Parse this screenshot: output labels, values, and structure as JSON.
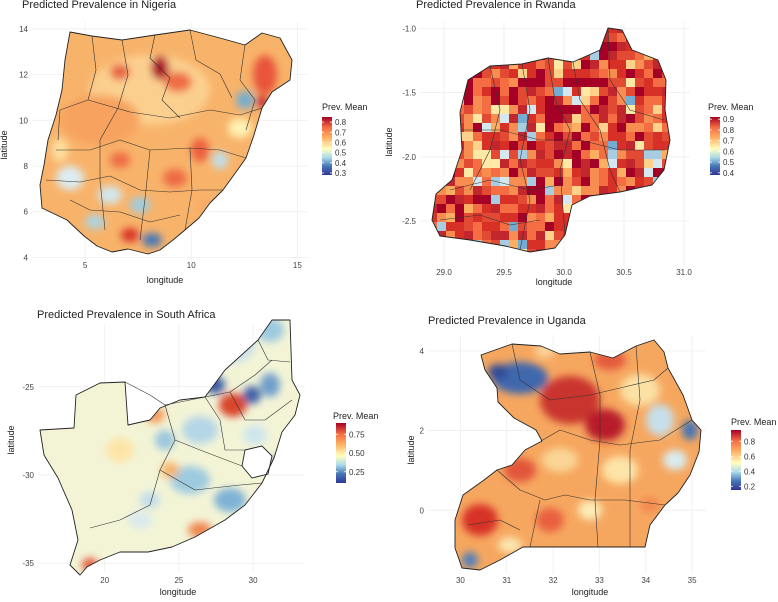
{
  "chart_data": [
    {
      "type": "heatmap",
      "title": "Predicted Prevalence in Nigeria",
      "xlabel": "longitude",
      "ylabel": "latitude",
      "xlim": [
        2.5,
        15.5
      ],
      "ylim": [
        3.8,
        14.3
      ],
      "x_ticks": [
        5,
        10,
        15
      ],
      "y_ticks": [
        4,
        6,
        8,
        10,
        12,
        14
      ],
      "legend": {
        "title": "Prev. Mean",
        "ticks": [
          0.3,
          0.4,
          0.5,
          0.6,
          0.7,
          0.8
        ],
        "range": [
          0.28,
          0.85
        ],
        "placement": "right"
      }
    },
    {
      "type": "heatmap",
      "title": "Predicted Prevalence in Rwanda",
      "xlabel": "longitude",
      "ylabel": "latitude",
      "xlim": [
        28.8,
        31.05
      ],
      "ylim": [
        -2.85,
        -0.95
      ],
      "x_ticks": [
        "29.0",
        "29.5",
        "30.0",
        "30.5",
        "31.0"
      ],
      "y_ticks": [
        "-1.0",
        "-1.5",
        "-2.0",
        "-2.5"
      ],
      "legend": {
        "title": "Prev. Mean",
        "ticks": [
          0.4,
          0.5,
          0.6,
          0.7,
          0.8,
          0.9
        ],
        "range": [
          0.38,
          0.92
        ],
        "placement": "right"
      }
    },
    {
      "type": "heatmap",
      "title": "Predicted Prevalence in South Africa",
      "xlabel": "longitude",
      "ylabel": "latitude",
      "xlim": [
        15.5,
        33.5
      ],
      "ylim": [
        -35.5,
        -21.5
      ],
      "x_ticks": [
        20,
        25,
        30
      ],
      "y_ticks": [
        -25,
        -30,
        -35
      ],
      "legend": {
        "title": "Prev. Mean",
        "ticks": [
          "0.25",
          "0.50",
          "0.75"
        ],
        "range": [
          0.1,
          0.9
        ],
        "placement": "right"
      }
    },
    {
      "type": "heatmap",
      "title": "Predicted Prevalence in Uganda",
      "xlabel": "longitude",
      "ylabel": "latitude",
      "xlim": [
        29.3,
        35.3
      ],
      "ylim": [
        -1.6,
        4.4
      ],
      "x_ticks": [
        30,
        31,
        32,
        33,
        34,
        35
      ],
      "y_ticks": [
        0,
        2,
        4
      ],
      "legend": {
        "title": "Prev. Mean",
        "ticks": [
          0.2,
          0.4,
          0.6,
          0.8
        ],
        "range": [
          0.15,
          0.95
        ],
        "placement": "right"
      }
    }
  ]
}
